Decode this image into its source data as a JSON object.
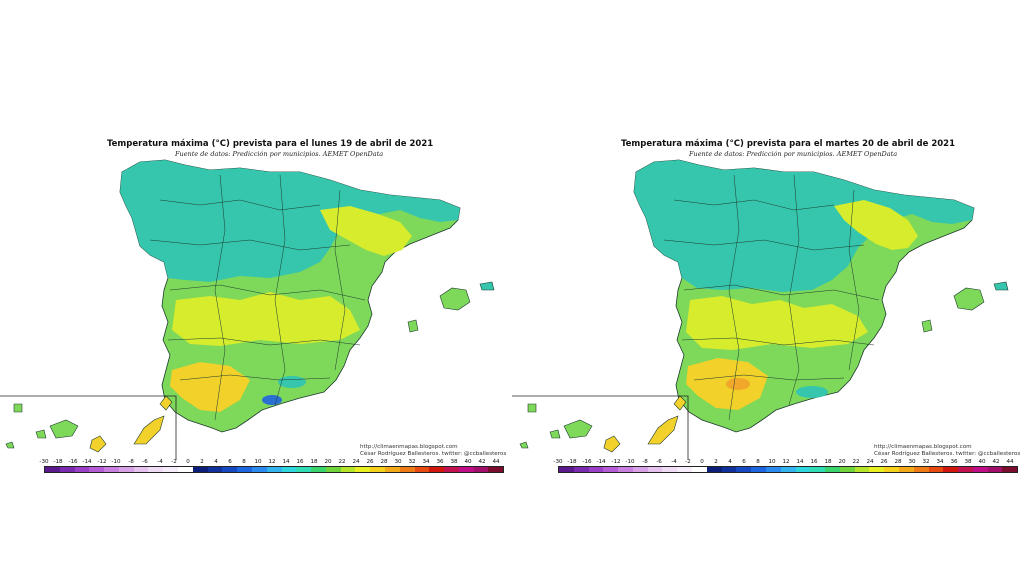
{
  "maps": [
    {
      "title": "Temperatura máxima (°C) prevista para el lunes 19 de abril de 2021",
      "subtitle": "Fuente de datos: Predicción por municipios. AEMET OpenData",
      "credit_url": "http://climaenmapas.blogspot.com",
      "credit_author": "César Rodríguez Ballesteros. twitter: @ccballesteros",
      "legend_ticks_left": [
        "-30",
        "-18",
        "-16",
        "-14",
        "-12",
        "-10",
        "-8",
        "-6",
        "-4",
        "-2"
      ],
      "legend_ticks_right": [
        "0",
        "2",
        "4",
        "6",
        "8",
        "10",
        "12",
        "14",
        "16",
        "18",
        "20",
        "22",
        "24",
        "26",
        "28",
        "30",
        "32",
        "34",
        "36",
        "38",
        "40",
        "42",
        "44"
      ]
    },
    {
      "title": "Temperatura máxima (°C) prevista para el martes 20 de abril de 2021",
      "subtitle": "Fuente de datos: Predicción por municipios. AEMET OpenData",
      "credit_url": "http://climaenmapas.blogspot.com",
      "credit_author": "César Rodríguez Ballesteros. twitter: @ccballesteros",
      "legend_ticks_left": [
        "-30",
        "-18",
        "-16",
        "-14",
        "-12",
        "-10",
        "-8",
        "-6",
        "-4",
        "-2"
      ],
      "legend_ticks_right": [
        "0",
        "2",
        "4",
        "6",
        "8",
        "10",
        "12",
        "14",
        "16",
        "18",
        "20",
        "22",
        "24",
        "26",
        "28",
        "30",
        "32",
        "34",
        "36",
        "38",
        "40",
        "42",
        "44"
      ]
    }
  ],
  "colors": {
    "cool_zone": "#35c6ad",
    "mild_zone": "#7ed85a",
    "warm_zone": "#d6ec2d",
    "hot_zone": "#f1d12a",
    "cold_spot": "#2b6fd3",
    "border_line": "#1d3a2e",
    "legend_scale": [
      "#5a1a8e",
      "#7b2bb0",
      "#9a3fc8",
      "#b55bd6",
      "#c97fe0",
      "#d9a2e6",
      "#e6c2ee",
      "#f0dcf4",
      "#f7ecfa",
      "#ffffff",
      "#0b1f7a",
      "#10309c",
      "#1649c1",
      "#1d66df",
      "#2a8aef",
      "#33b4ef",
      "#2fd6de",
      "#2fdcb3",
      "#39d46b",
      "#6fd43a",
      "#b4e52a",
      "#e8f021",
      "#f6d21d",
      "#f4a91a",
      "#ef7b16",
      "#e84b12",
      "#d2170f",
      "#c2124f",
      "#c00f86",
      "#a20e6b",
      "#7a0d2d"
    ]
  }
}
